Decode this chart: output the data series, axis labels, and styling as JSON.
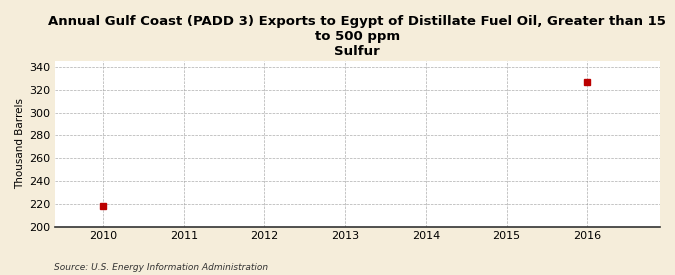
{
  "title": "Annual Gulf Coast (PADD 3) Exports to Egypt of Distillate Fuel Oil, Greater than 15 to 500 ppm\nSulfur",
  "ylabel": "Thousand Barrels",
  "source": "Source: U.S. Energy Information Administration",
  "x_data": [
    2010,
    2016
  ],
  "y_data": [
    218,
    327
  ],
  "marker_color": "#bb0000",
  "marker_size": 4,
  "xlim": [
    2009.4,
    2016.9
  ],
  "ylim": [
    200,
    345
  ],
  "yticks": [
    200,
    220,
    240,
    260,
    280,
    300,
    320,
    340
  ],
  "xticks": [
    2010,
    2011,
    2012,
    2013,
    2014,
    2015,
    2016
  ],
  "background_color": "#f5edda",
  "plot_bg_color": "#ffffff",
  "grid_color": "#999999",
  "title_fontsize": 9.5,
  "label_fontsize": 7.5,
  "tick_fontsize": 8,
  "source_fontsize": 6.5
}
